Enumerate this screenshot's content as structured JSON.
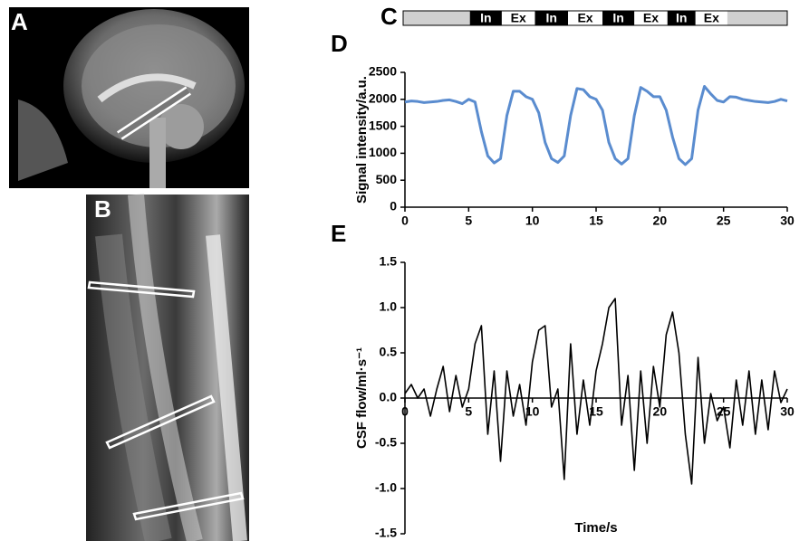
{
  "images": [
    {
      "panel_label": "A"
    },
    {
      "panel_label": "B"
    }
  ],
  "breathing_bar": {
    "panel_label": "C",
    "segments": [
      {
        "label": "In",
        "start": 5.1,
        "end": 7.6
      },
      {
        "label": "Ex",
        "start": 7.6,
        "end": 10.2
      },
      {
        "label": "In",
        "start": 10.2,
        "end": 12.8
      },
      {
        "label": "Ex",
        "start": 12.8,
        "end": 15.5
      },
      {
        "label": "In",
        "start": 15.5,
        "end": 18.0
      },
      {
        "label": "Ex",
        "start": 18.0,
        "end": 20.6
      },
      {
        "label": "In",
        "start": 20.6,
        "end": 22.8
      },
      {
        "label": "Ex",
        "start": 22.8,
        "end": 25.3
      }
    ]
  },
  "chart_data": [
    {
      "type": "line",
      "panel_label": "D",
      "y_label": "Signal intensity/a.u.",
      "x": [
        0,
        0.5,
        1,
        1.5,
        2,
        2.5,
        3,
        3.5,
        4,
        4.5,
        5,
        5.5,
        6,
        6.5,
        7,
        7.5,
        8,
        8.5,
        9,
        9.5,
        10,
        10.5,
        11,
        11.5,
        12,
        12.5,
        13,
        13.5,
        14,
        14.5,
        15,
        15.5,
        16,
        16.5,
        17,
        17.5,
        18,
        18.5,
        19,
        19.5,
        20,
        20.5,
        21,
        21.5,
        22,
        22.5,
        23,
        23.5,
        24,
        24.5,
        25,
        25.5,
        26,
        26.5,
        27,
        27.5,
        28,
        28.5,
        29,
        29.5,
        30
      ],
      "series": [
        {
          "color": "#5a8ccf",
          "values": [
            1950,
            1970,
            1960,
            1940,
            1950,
            1960,
            1980,
            1990,
            1960,
            1920,
            2000,
            1950,
            1400,
            950,
            820,
            900,
            1700,
            2150,
            2150,
            2050,
            2000,
            1750,
            1200,
            900,
            830,
            950,
            1700,
            2200,
            2180,
            2050,
            2000,
            1800,
            1200,
            900,
            800,
            900,
            1700,
            2220,
            2150,
            2050,
            2050,
            1800,
            1300,
            900,
            790,
            900,
            1800,
            2240,
            2100,
            1980,
            1950,
            2050,
            2040,
            2000,
            1980,
            1960,
            1950,
            1940,
            1960,
            2000,
            1970
          ]
        }
      ],
      "xlim": [
        0,
        30
      ],
      "xticks": [
        0,
        5,
        10,
        15,
        20,
        25,
        30
      ],
      "ylim": [
        0,
        2500
      ],
      "yticks": [
        0,
        500,
        1000,
        1500,
        2000,
        2500
      ]
    },
    {
      "type": "line",
      "panel_label": "E",
      "y_label": "CSF flow/ml·s⁻¹",
      "x_label": "Time/s",
      "x": [
        0,
        0.5,
        1,
        1.5,
        2,
        2.5,
        3,
        3.5,
        4,
        4.5,
        5,
        5.5,
        6,
        6.5,
        7,
        7.5,
        8,
        8.5,
        9,
        9.5,
        10,
        10.5,
        11,
        11.5,
        12,
        12.5,
        13,
        13.5,
        14,
        14.5,
        15,
        15.5,
        16,
        16.5,
        17,
        17.5,
        18,
        18.5,
        19,
        19.5,
        20,
        20.5,
        21,
        21.5,
        22,
        22.5,
        23,
        23.5,
        24,
        24.5,
        25,
        25.5,
        26,
        26.5,
        27,
        27.5,
        28,
        28.5,
        29,
        29.5,
        30
      ],
      "series": [
        {
          "color": "#000000",
          "values": [
            0.05,
            0.15,
            0.0,
            0.1,
            -0.2,
            0.1,
            0.35,
            -0.15,
            0.25,
            -0.1,
            0.1,
            0.6,
            0.8,
            -0.4,
            0.3,
            -0.7,
            0.3,
            -0.2,
            0.15,
            -0.3,
            0.4,
            0.75,
            0.8,
            -0.1,
            0.1,
            -0.9,
            0.6,
            -0.4,
            0.2,
            -0.3,
            0.3,
            0.6,
            1.0,
            1.1,
            -0.3,
            0.25,
            -0.8,
            0.3,
            -0.5,
            0.35,
            -0.1,
            0.7,
            0.95,
            0.5,
            -0.4,
            -0.95,
            0.45,
            -0.5,
            0.05,
            -0.25,
            -0.1,
            -0.55,
            0.2,
            -0.3,
            0.3,
            -0.4,
            0.2,
            -0.35,
            0.3,
            -0.05,
            0.1
          ]
        }
      ],
      "xlim": [
        0,
        30
      ],
      "xticks": [
        0,
        5,
        10,
        15,
        20,
        25,
        30
      ],
      "ylim": [
        -1.5,
        1.5
      ],
      "yticks": [
        1.5,
        {
          "value": 1,
          "label": "1.0"
        },
        0.5,
        {
          "value": 0,
          "label": "0.0"
        },
        -0.5,
        {
          "value": -1,
          "label": "-1.0"
        },
        -1.5
      ]
    }
  ]
}
